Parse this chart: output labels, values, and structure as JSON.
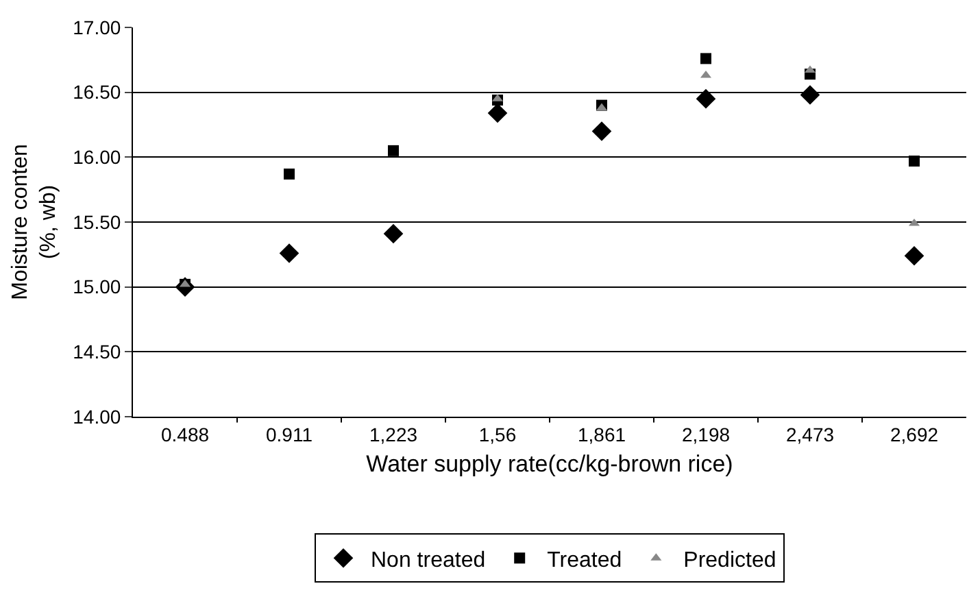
{
  "chart_data": {
    "type": "scatter",
    "xlabel": "Water supply rate(cc/kg-brown rice)",
    "ylabel": "Moisture conten\n(%, wb)",
    "categories": [
      "0.488",
      "0.911",
      "1,223",
      "1,56",
      "1,861",
      "2,198",
      "2,473",
      "2,692"
    ],
    "series": [
      {
        "name": "Non treated",
        "color": "#000000",
        "marker": "diamond",
        "values": [
          15.0,
          15.26,
          15.41,
          16.34,
          16.2,
          16.45,
          16.48,
          15.24
        ]
      },
      {
        "name": "Treated",
        "color": "#000000",
        "marker": "square",
        "values": [
          15.02,
          15.87,
          16.05,
          16.44,
          16.4,
          16.76,
          16.64,
          15.97
        ]
      },
      {
        "name": "Predicted",
        "color": "#888888",
        "marker": "triangle",
        "values": [
          15.02,
          null,
          null,
          16.45,
          16.38,
          16.63,
          16.67,
          15.49
        ]
      }
    ],
    "ylim": [
      14.0,
      17.0
    ],
    "yticks": [
      {
        "value": 14,
        "label": "14.00"
      },
      {
        "value": 14.5,
        "label": "14.50"
      },
      {
        "value": 15,
        "label": "15.00"
      },
      {
        "value": 15.5,
        "label": "15.50"
      },
      {
        "value": 16,
        "label": "16.00"
      },
      {
        "value": 16.5,
        "label": "16.50"
      },
      {
        "value": 17,
        "label": "17.00"
      }
    ],
    "grid": "y",
    "legend": "bottom"
  }
}
